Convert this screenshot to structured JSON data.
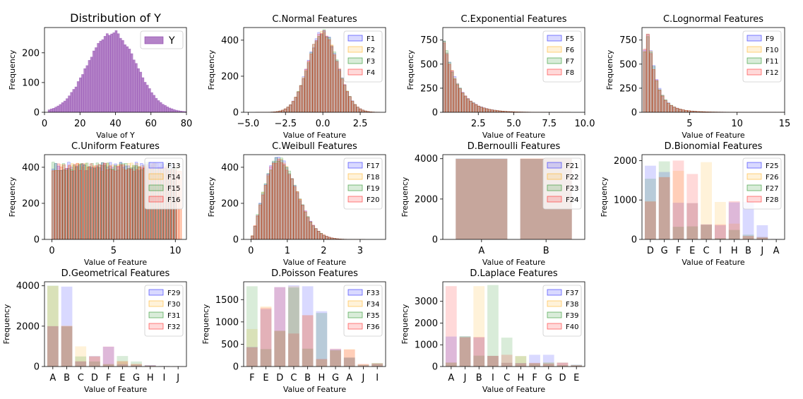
{
  "figure": {
    "subplots": 11
  },
  "chart_data": [
    {
      "id": "y",
      "type": "histogram",
      "title": "Distribution of Y",
      "xlabel": "Value of Y",
      "ylabel": "Frequency",
      "xlim": [
        0,
        80
      ],
      "ylim": [
        0,
        285
      ],
      "xticks": [
        0,
        20,
        40,
        60,
        80
      ],
      "yticks": [
        0,
        100,
        200
      ],
      "legend_loc": "upper right",
      "series": [
        {
          "name": "Y",
          "color": "#9b59b6",
          "mean": 38,
          "sd": 13.5,
          "peak": 270,
          "range": [
            2,
            80
          ]
        }
      ]
    },
    {
      "id": "normal",
      "type": "histogram",
      "title": "C.Normal Features",
      "xlabel": "Value of Feature",
      "ylabel": "Frequency",
      "xlim": [
        -5.3,
        4.2
      ],
      "ylim": [
        0,
        470
      ],
      "xticks": [
        -5.0,
        -2.5,
        0.0,
        2.5
      ],
      "yticks": [
        0,
        200,
        400
      ],
      "tick_decimals": 1,
      "legend_loc": "upper right",
      "series": [
        {
          "name": "F1",
          "color": "#0000ff",
          "dist": "normal",
          "mean": 0,
          "sd": 1,
          "peak": 445,
          "range": [
            -4.5,
            3.8
          ]
        },
        {
          "name": "F2",
          "color": "#ffa500",
          "dist": "normal",
          "mean": 0,
          "sd": 1,
          "peak": 440,
          "range": [
            -4.5,
            3.8
          ]
        },
        {
          "name": "F3",
          "color": "#008000",
          "dist": "normal",
          "mean": 0,
          "sd": 1,
          "peak": 445,
          "range": [
            -4.5,
            3.8
          ]
        },
        {
          "name": "F4",
          "color": "#ff0000",
          "dist": "normal",
          "mean": 0,
          "sd": 1,
          "peak": 440,
          "range": [
            -4.5,
            3.8
          ]
        }
      ]
    },
    {
      "id": "exponential",
      "type": "histogram",
      "title": "C.Exponential Features",
      "xlabel": "Value of Feature",
      "ylabel": "Frequency",
      "xlim": [
        0,
        10
      ],
      "ylim": [
        0,
        880
      ],
      "xticks": [
        2.5,
        5.0,
        7.5,
        10.0
      ],
      "yticks": [
        0,
        250,
        500,
        750
      ],
      "tick_decimals": 1,
      "legend_loc": "upper right",
      "series": [
        {
          "name": "F5",
          "color": "#0000ff",
          "dist": "exponential",
          "scale": 1,
          "peak": 840,
          "range": [
            0,
            9
          ]
        },
        {
          "name": "F6",
          "color": "#ffa500",
          "dist": "exponential",
          "scale": 1,
          "peak": 820,
          "range": [
            0,
            9
          ]
        },
        {
          "name": "F7",
          "color": "#008000",
          "dist": "exponential",
          "scale": 1,
          "peak": 830,
          "range": [
            0,
            9
          ]
        },
        {
          "name": "F8",
          "color": "#ff0000",
          "dist": "exponential",
          "scale": 1,
          "peak": 815,
          "range": [
            0,
            9
          ]
        }
      ]
    },
    {
      "id": "lognormal",
      "type": "histogram",
      "title": "C.Lognormal Features",
      "xlabel": "Value of Feature",
      "ylabel": "Frequency",
      "xlim": [
        0,
        15
      ],
      "ylim": [
        0,
        880
      ],
      "xticks": [
        5,
        10,
        15
      ],
      "yticks": [
        0,
        250,
        500,
        750
      ],
      "legend_loc": "upper right",
      "series": [
        {
          "name": "F9",
          "color": "#0000ff",
          "dist": "lognormal",
          "mu": 0,
          "sigma": 0.8,
          "peak": 830,
          "range": [
            0.15,
            15
          ]
        },
        {
          "name": "F10",
          "color": "#ffa500",
          "dist": "lognormal",
          "mu": 0,
          "sigma": 0.8,
          "peak": 810,
          "range": [
            0.15,
            15
          ]
        },
        {
          "name": "F11",
          "color": "#008000",
          "dist": "lognormal",
          "mu": 0,
          "sigma": 0.8,
          "peak": 820,
          "range": [
            0.15,
            15
          ]
        },
        {
          "name": "F12",
          "color": "#ff0000",
          "dist": "lognormal",
          "mu": 0,
          "sigma": 0.8,
          "peak": 805,
          "range": [
            0.15,
            15
          ]
        }
      ]
    },
    {
      "id": "uniform",
      "type": "histogram",
      "title": "C.Uniform Features",
      "xlabel": "Value of Feature",
      "ylabel": "Frequency",
      "xlim": [
        -0.6,
        10.9
      ],
      "ylim": [
        0,
        470
      ],
      "xticks": [
        0,
        5,
        10
      ],
      "yticks": [
        0,
        200,
        400
      ],
      "legend_loc": "upper right",
      "series": [
        {
          "name": "F13",
          "color": "#0000ff",
          "dist": "uniform",
          "level": 405,
          "range": [
            0,
            10.1
          ]
        },
        {
          "name": "F14",
          "color": "#ffa500",
          "dist": "uniform",
          "level": 400,
          "range": [
            0,
            10.5
          ]
        },
        {
          "name": "F15",
          "color": "#008000",
          "dist": "uniform",
          "level": 405,
          "range": [
            0,
            10.1
          ]
        },
        {
          "name": "F16",
          "color": "#ff0000",
          "dist": "uniform",
          "level": 400,
          "range": [
            0,
            10.5
          ]
        }
      ]
    },
    {
      "id": "weibull",
      "type": "histogram",
      "title": "C.Weibull Features",
      "xlabel": "Value of Feature",
      "ylabel": "Frequency",
      "xlim": [
        -0.2,
        3.7
      ],
      "ylim": [
        0,
        470
      ],
      "xticks": [
        0,
        1,
        2,
        3
      ],
      "yticks": [
        0,
        200,
        400
      ],
      "legend_loc": "upper right",
      "series": [
        {
          "name": "F17",
          "color": "#0000ff",
          "dist": "weibull",
          "k": 2.2,
          "lambda": 1,
          "peak": 445,
          "range": [
            0,
            3.5
          ]
        },
        {
          "name": "F18",
          "color": "#ffa500",
          "dist": "weibull",
          "k": 2.2,
          "lambda": 1,
          "peak": 440,
          "range": [
            0,
            3.5
          ]
        },
        {
          "name": "F19",
          "color": "#008000",
          "dist": "weibull",
          "k": 2.2,
          "lambda": 1,
          "peak": 445,
          "range": [
            0,
            3.5
          ]
        },
        {
          "name": "F20",
          "color": "#ff0000",
          "dist": "weibull",
          "k": 2.2,
          "lambda": 1,
          "peak": 440,
          "range": [
            0,
            3.5
          ]
        }
      ]
    },
    {
      "id": "bernoulli",
      "type": "bar",
      "title": "D.Bernoulli Features",
      "xlabel": "Value of Feature",
      "ylabel": "Frequency",
      "ylim": [
        0,
        4200
      ],
      "yticks": [
        0,
        2000,
        4000
      ],
      "categories": [
        "A",
        "B"
      ],
      "legend_loc": "upper right",
      "series": [
        {
          "name": "F21",
          "color": "#0000ff",
          "values": [
            4010,
            3990
          ]
        },
        {
          "name": "F22",
          "color": "#ffa500",
          "values": [
            3995,
            4005
          ]
        },
        {
          "name": "F23",
          "color": "#008000",
          "values": [
            4005,
            3995
          ]
        },
        {
          "name": "F24",
          "color": "#ff0000",
          "values": [
            3990,
            4010
          ]
        }
      ]
    },
    {
      "id": "binomial",
      "type": "bar",
      "title": "D.Bionomial Features",
      "xlabel": "Value of Feature",
      "ylabel": "Frequency",
      "ylim": [
        0,
        2150
      ],
      "yticks": [
        0,
        1000,
        2000
      ],
      "categories": [
        "D",
        "G",
        "F",
        "E",
        "C",
        "I",
        "H",
        "B",
        "J",
        "A"
      ],
      "legend_loc": "upper right",
      "series": [
        {
          "name": "F25",
          "color": "#0000ff",
          "values": [
            1870,
            1710,
            930,
            920,
            380,
            360,
            940,
            950,
            360,
            10
          ]
        },
        {
          "name": "F26",
          "color": "#ffa500",
          "values": [
            970,
            1580,
            1740,
            920,
            1960,
            950,
            400,
            80,
            40,
            5
          ]
        },
        {
          "name": "F27",
          "color": "#008000",
          "values": [
            1540,
            1980,
            320,
            330,
            370,
            30,
            240,
            120,
            60,
            10
          ]
        },
        {
          "name": "F28",
          "color": "#ff0000",
          "values": [
            960,
            1580,
            2000,
            1660,
            380,
            380,
            970,
            90,
            60,
            5
          ]
        }
      ]
    },
    {
      "id": "geometrical",
      "type": "bar",
      "title": "D.Geometrical Features",
      "xlabel": "Value of Feature",
      "ylabel": "Frequency",
      "ylim": [
        0,
        4200
      ],
      "yticks": [
        0,
        2000,
        4000
      ],
      "categories": [
        "A",
        "B",
        "C",
        "D",
        "F",
        "E",
        "G",
        "H",
        "I",
        "J"
      ],
      "legend_loc": "upper right",
      "series": [
        {
          "name": "F29",
          "color": "#0000ff",
          "values": [
            2000,
            3960,
            250,
            520,
            980,
            120,
            80,
            70,
            20,
            10
          ]
        },
        {
          "name": "F30",
          "color": "#ffa500",
          "values": [
            3990,
            2030,
            1000,
            510,
            120,
            270,
            120,
            30,
            10,
            5
          ]
        },
        {
          "name": "F31",
          "color": "#008000",
          "values": [
            4010,
            1990,
            500,
            250,
            120,
            520,
            250,
            60,
            20,
            10
          ]
        },
        {
          "name": "F32",
          "color": "#ff0000",
          "values": [
            2000,
            2000,
            260,
            500,
            990,
            260,
            130,
            60,
            20,
            10
          ]
        }
      ]
    },
    {
      "id": "poisson",
      "type": "bar",
      "title": "D.Poisson Features",
      "xlabel": "Value of Feature",
      "ylabel": "Frequency",
      "ylim": [
        0,
        1900
      ],
      "yticks": [
        0,
        500,
        1000,
        1500
      ],
      "categories": [
        "F",
        "E",
        "D",
        "C",
        "B",
        "H",
        "G",
        "A",
        "J",
        "I"
      ],
      "legend_loc": "upper right",
      "series": [
        {
          "name": "F33",
          "color": "#0000ff",
          "values": [
            440,
            1290,
            1780,
            1820,
            1800,
            1240,
            390,
            200,
            30,
            60
          ]
        },
        {
          "name": "F34",
          "color": "#ffa500",
          "values": [
            840,
            1350,
            800,
            1800,
            1150,
            160,
            360,
            390,
            50,
            70
          ]
        },
        {
          "name": "F35",
          "color": "#008000",
          "values": [
            1800,
            390,
            800,
            1770,
            400,
            1200,
            370,
            200,
            40,
            80
          ]
        },
        {
          "name": "F36",
          "color": "#ff0000",
          "values": [
            430,
            1320,
            1780,
            740,
            1150,
            170,
            400,
            380,
            60,
            70
          ]
        }
      ]
    },
    {
      "id": "laplace",
      "type": "bar",
      "title": "D.Laplace Features",
      "xlabel": "Value of Feature",
      "ylabel": "Frequency",
      "ylim": [
        0,
        3900
      ],
      "yticks": [
        0,
        1000,
        2000,
        3000
      ],
      "categories": [
        "A",
        "J",
        "B",
        "I",
        "C",
        "H",
        "F",
        "G",
        "D",
        "E"
      ],
      "legend_loc": "upper right",
      "series": [
        {
          "name": "F37",
          "color": "#0000ff",
          "values": [
            1380,
            1380,
            1340,
            490,
            170,
            160,
            540,
            540,
            180,
            80
          ]
        },
        {
          "name": "F38",
          "color": "#ffa500",
          "values": [
            180,
            1370,
            3700,
            490,
            170,
            480,
            150,
            180,
            190,
            60
          ]
        },
        {
          "name": "F39",
          "color": "#008000",
          "values": [
            180,
            1400,
            500,
            3750,
            1330,
            480,
            150,
            180,
            60,
            80
          ]
        },
        {
          "name": "F40",
          "color": "#ff0000",
          "values": [
            3700,
            1340,
            1360,
            490,
            540,
            150,
            170,
            130,
            170,
            50
          ]
        }
      ]
    }
  ]
}
